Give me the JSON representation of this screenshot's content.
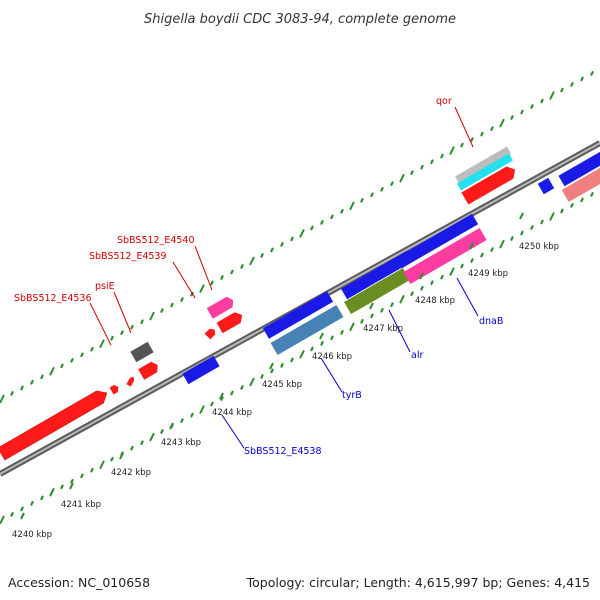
{
  "map": {
    "title": "Shigella boydii CDC 3083-94, complete genome",
    "accession": "Accession: NC_010658",
    "summary": "Topology: circular; Length: 4,615,997 bp; Genes: 4,415"
  },
  "colors": {
    "backbone": "#8c8c8c",
    "tick": "#2e8b2e",
    "label_plus": "#cc0000",
    "label_minus": "#0000cc"
  },
  "ticks": [
    {
      "label": "4240 kbp"
    },
    {
      "label": "4241 kbp"
    },
    {
      "label": "4242 kbp"
    },
    {
      "label": "4243 kbp"
    },
    {
      "label": "4244 kbp"
    },
    {
      "label": "4245 kbp"
    },
    {
      "label": "4246 kbp"
    },
    {
      "label": "4247 kbp"
    },
    {
      "label": "4248 kbp"
    },
    {
      "label": "4249 kbp"
    },
    {
      "label": "4250 kbp"
    }
  ],
  "gene_labels": [
    {
      "name": "qor",
      "strand": "plus"
    },
    {
      "name": "SbBS512_E4540",
      "strand": "plus"
    },
    {
      "name": "SbBS512_E4539",
      "strand": "plus"
    },
    {
      "name": "psiE",
      "strand": "plus"
    },
    {
      "name": "SbBS512_E4536",
      "strand": "plus"
    },
    {
      "name": "dnaB",
      "strand": "minus"
    },
    {
      "name": "alr",
      "strand": "minus"
    },
    {
      "name": "tyrB",
      "strand": "minus"
    },
    {
      "name": "SbBS512_E4538",
      "strand": "minus"
    }
  ]
}
